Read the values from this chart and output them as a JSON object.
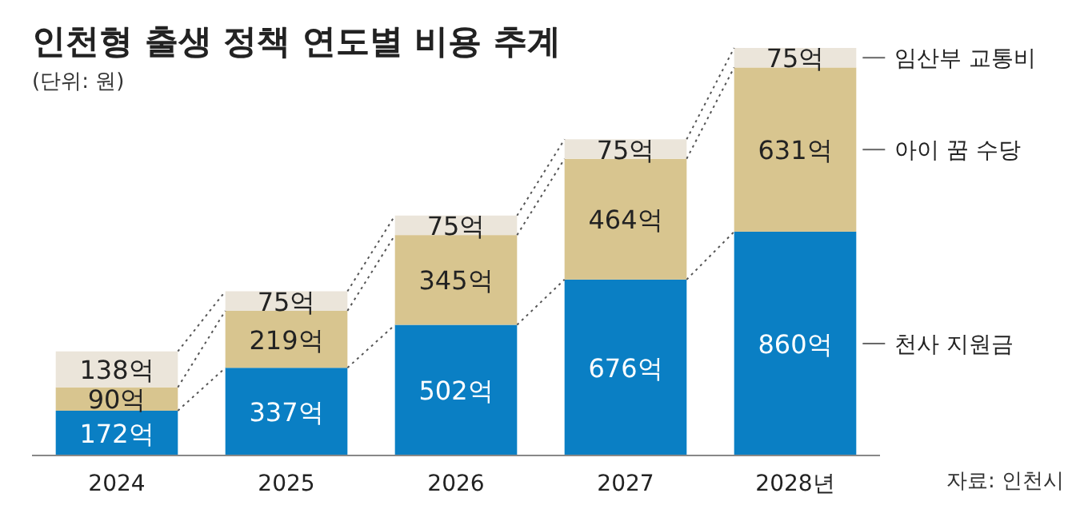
{
  "chart_data": {
    "type": "bar",
    "title": "인천형 출생 정책 연도별 비용 추계",
    "subtitle": "(단위: 원)",
    "stacked": true,
    "categories": [
      "2024",
      "2025",
      "2026",
      "2027",
      "2028년"
    ],
    "series": [
      {
        "name": "천사 지원금",
        "color": "#0a7fc4",
        "values": [
          172,
          337,
          502,
          676,
          860
        ],
        "value_labels": [
          "172억",
          "337억",
          "502억",
          "676억",
          "860억"
        ]
      },
      {
        "name": "아이 꿈 수당",
        "color": "#d8c58f",
        "values": [
          90,
          219,
          345,
          464,
          631
        ],
        "value_labels": [
          "90억",
          "219억",
          "345억",
          "464억",
          "631억"
        ]
      },
      {
        "name": "임산부 교통비",
        "color": "#ebe5da",
        "values": [
          138,
          75,
          75,
          75,
          75
        ],
        "value_labels": [
          "138억",
          "75억",
          "75억",
          "75억",
          "75억"
        ]
      }
    ],
    "annotations": [
      "자료: 인천시"
    ]
  }
}
